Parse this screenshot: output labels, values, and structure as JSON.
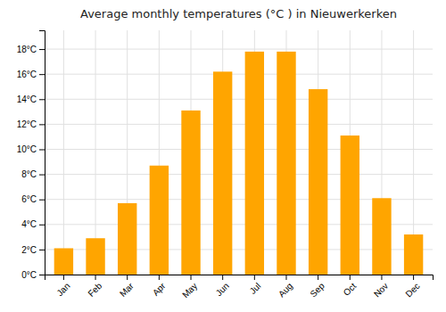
{
  "chart_data": {
    "type": "bar",
    "title": "Average monthly temperatures (°C ) in Nieuwerkerken",
    "categories": [
      "Jan",
      "Feb",
      "Mar",
      "Apr",
      "May",
      "Jun",
      "Jul",
      "Aug",
      "Sep",
      "Oct",
      "Nov",
      "Dec"
    ],
    "values": [
      2.1,
      2.9,
      5.7,
      8.7,
      13.1,
      16.2,
      17.8,
      17.8,
      14.8,
      11.1,
      6.1,
      3.2
    ],
    "color": "#FFA500",
    "ylim": [
      0,
      19.5
    ],
    "yticks": [
      {
        "value": 0,
        "label": "0°C"
      },
      {
        "value": 2,
        "label": "2°C"
      },
      {
        "value": 4,
        "label": "4°C"
      },
      {
        "value": 6,
        "label": "6°C"
      },
      {
        "value": 8,
        "label": "8°C"
      },
      {
        "value": 10,
        "label": "10°C"
      },
      {
        "value": 12,
        "label": "12°C"
      },
      {
        "value": 14,
        "label": "14°C"
      },
      {
        "value": 16,
        "label": "16°C"
      },
      {
        "value": 18,
        "label": "18°C"
      }
    ],
    "grid": true
  }
}
